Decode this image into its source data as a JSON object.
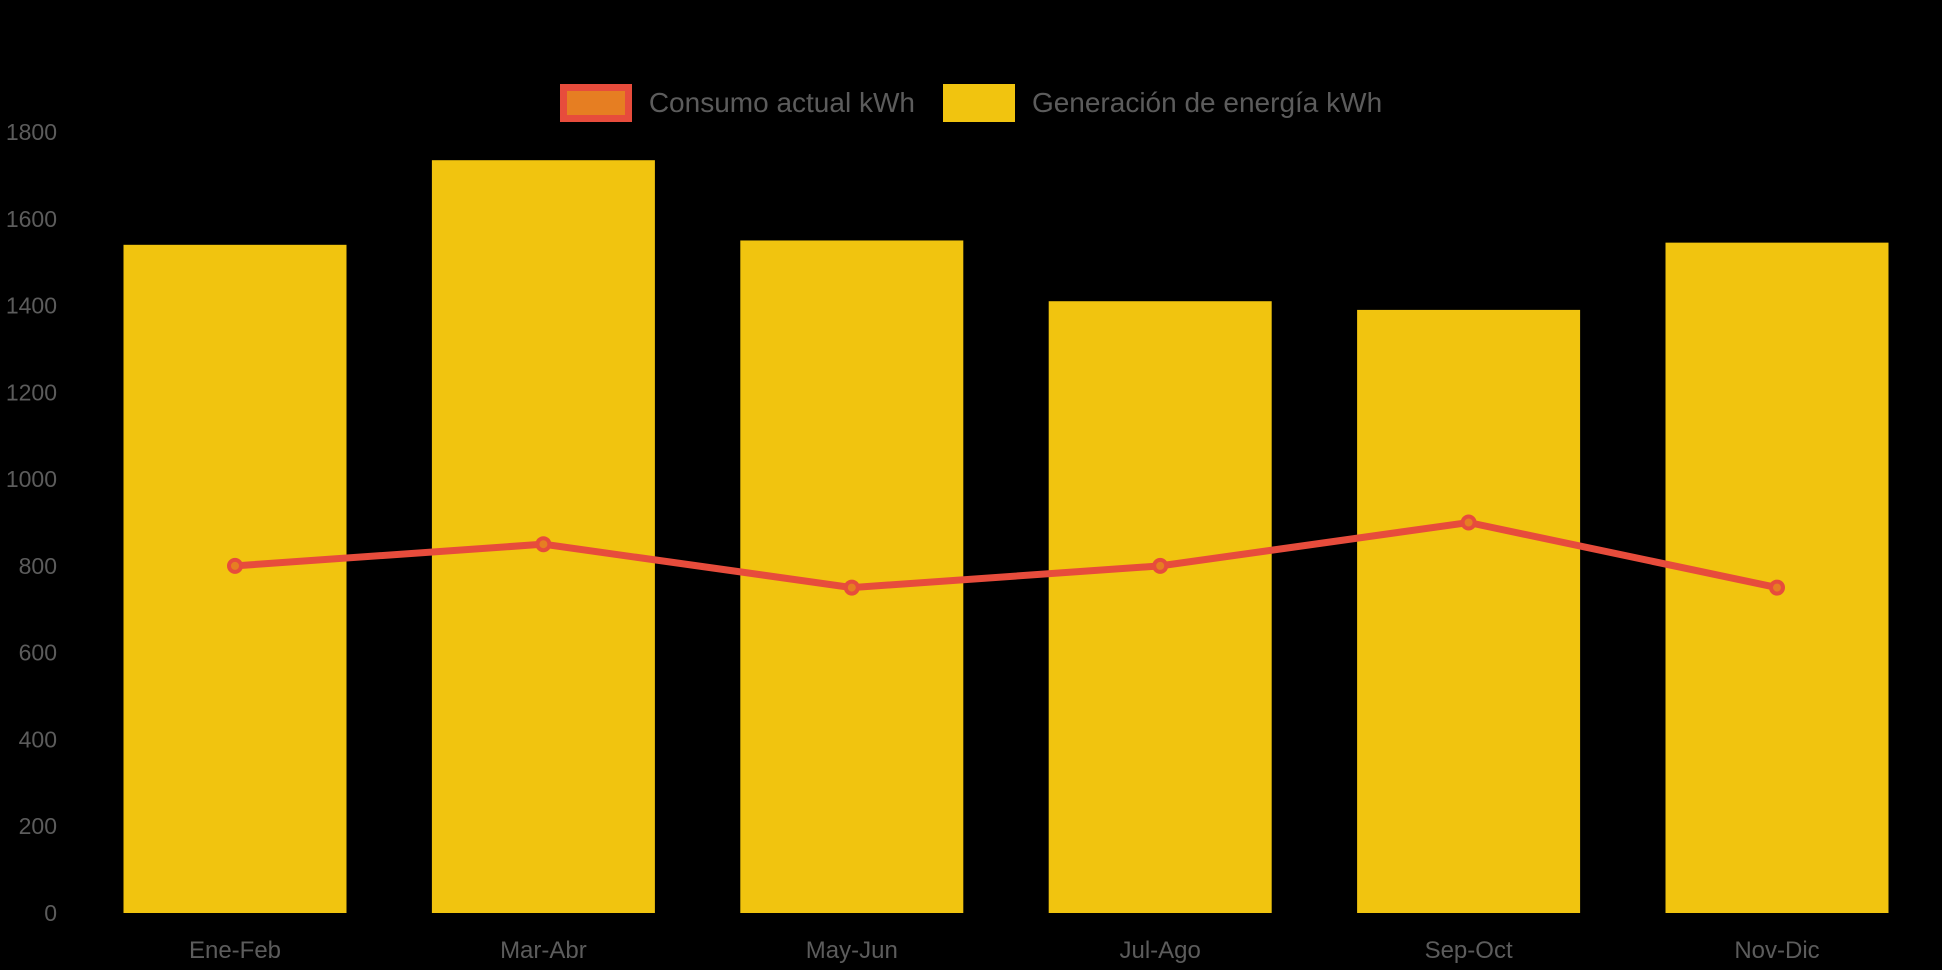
{
  "chart_data": {
    "type": "bar",
    "subtype": "bar-line-combo",
    "categories": [
      "Ene-Feb",
      "Mar-Abr",
      "May-Jun",
      "Jul-Ago",
      "Sep-Oct",
      "Nov-Dic"
    ],
    "series": [
      {
        "name": "Consumo actual kWh",
        "type": "line",
        "color": "#e74c3c",
        "marker_fill": "#e67e22",
        "values": [
          800,
          850,
          750,
          800,
          900,
          750
        ]
      },
      {
        "name": "Generación de energía kWh",
        "type": "bar",
        "color": "#f1c40f",
        "values": [
          1540,
          1735,
          1550,
          1410,
          1390,
          1545
        ]
      }
    ],
    "title": "",
    "xlabel": "",
    "ylabel": "",
    "ylim": [
      0,
      1800
    ],
    "yticks": [
      0,
      200,
      400,
      600,
      800,
      1000,
      1200,
      1400,
      1600,
      1800
    ],
    "grid": false,
    "legend_position": "top",
    "background_color": "#000000",
    "text_color": "#5c5c5c"
  }
}
